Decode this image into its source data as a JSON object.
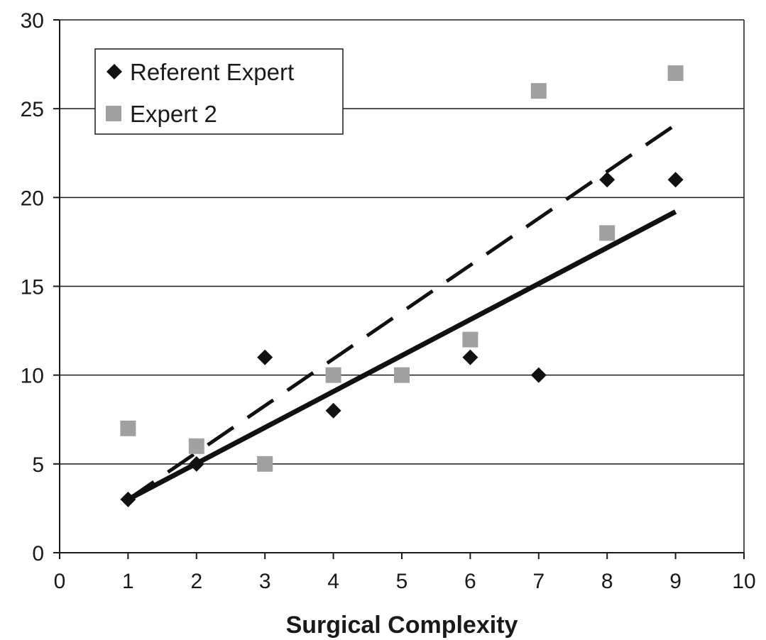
{
  "chart_data": {
    "type": "scatter",
    "title": "",
    "xlabel": "Surgical Complexity",
    "ylabel": "",
    "xlim": [
      0,
      10
    ],
    "ylim": [
      0,
      30
    ],
    "x_ticks": [
      0,
      1,
      2,
      3,
      4,
      5,
      6,
      7,
      8,
      9,
      10
    ],
    "y_ticks": [
      0,
      5,
      10,
      15,
      20,
      25,
      30
    ],
    "grid": "horizontal",
    "legend_position": "top-left",
    "series": [
      {
        "name": "Referent Expert",
        "marker": "diamond",
        "color": "#111111",
        "x": [
          1,
          2,
          3,
          4,
          6,
          7,
          8,
          9
        ],
        "y": [
          3,
          5,
          11,
          8,
          11,
          10,
          21,
          21
        ],
        "trendline": {
          "style": "solid",
          "x": [
            1,
            9
          ],
          "y": [
            3.0,
            19.2
          ]
        }
      },
      {
        "name": "Expert 2",
        "marker": "square",
        "color": "#a0a0a0",
        "x": [
          1,
          2,
          3,
          4,
          5,
          6,
          7,
          8,
          9
        ],
        "y": [
          7,
          6,
          5,
          10,
          10,
          12,
          26,
          18,
          27
        ],
        "trendline": {
          "style": "dashed",
          "x": [
            1,
            9
          ],
          "y": [
            3.0,
            24.1
          ]
        }
      }
    ]
  }
}
